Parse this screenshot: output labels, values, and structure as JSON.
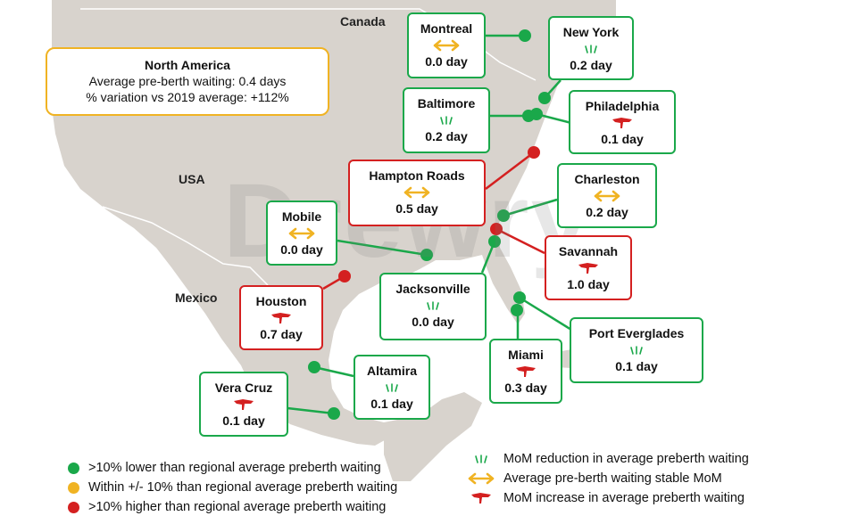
{
  "summary": {
    "title": "North America",
    "line1": "Average pre-berth waiting: 0.4 days",
    "line2": "% variation vs 2019 average: +112%"
  },
  "countries": {
    "canada": "Canada",
    "usa": "USA",
    "mexico": "Mexico"
  },
  "watermark": "Drewry",
  "colors": {
    "green": "#1aa84a",
    "amber": "#f0b323",
    "red": "#d42020",
    "land": "#d8d3cd",
    "sea": "#ffffff"
  },
  "ports": {
    "montreal": {
      "name": "Montreal",
      "value": "0.0 day",
      "status": "green",
      "trend": "stable-arrows-icon"
    },
    "new_york": {
      "name": "New York",
      "value": "0.2 day",
      "status": "green",
      "trend": "reduction-icon"
    },
    "baltimore": {
      "name": "Baltimore",
      "value": "0.2 day",
      "status": "green",
      "trend": "reduction-icon"
    },
    "philadelphia": {
      "name": "Philadelphia",
      "value": "0.1 day",
      "status": "green",
      "trend": "increase-icon"
    },
    "hampton_roads": {
      "name": "Hampton Roads",
      "value": "0.5 day",
      "status": "red",
      "trend": "stable-arrows-icon"
    },
    "charleston": {
      "name": "Charleston",
      "value": "0.2 day",
      "status": "green",
      "trend": "stable-arrows-icon"
    },
    "mobile": {
      "name": "Mobile",
      "value": "0.0 day",
      "status": "green",
      "trend": "stable-arrows-icon"
    },
    "savannah": {
      "name": "Savannah",
      "value": "1.0 day",
      "status": "red",
      "trend": "increase-icon"
    },
    "jacksonville": {
      "name": "Jacksonville",
      "value": "0.0 day",
      "status": "green",
      "trend": "reduction-icon"
    },
    "houston": {
      "name": "Houston",
      "value": "0.7 day",
      "status": "red",
      "trend": "increase-icon"
    },
    "port_everglades": {
      "name": "Port Everglades",
      "value": "0.1 day",
      "status": "green",
      "trend": "reduction-icon"
    },
    "miami": {
      "name": "Miami",
      "value": "0.3 day",
      "status": "green",
      "trend": "increase-icon"
    },
    "altamira": {
      "name": "Altamira",
      "value": "0.1 day",
      "status": "green",
      "trend": "reduction-icon"
    },
    "vera_cruz": {
      "name": "Vera Cruz",
      "value": "0.1 day",
      "status": "green",
      "trend": "increase-icon"
    }
  },
  "legend": {
    "dots": [
      {
        "color": "green",
        "label": ">10% lower than regional average preberth waiting"
      },
      {
        "color": "amber",
        "label": "Within +/- 10% than regional average preberth waiting"
      },
      {
        "color": "red",
        "label": ">10% higher than regional average preberth waiting"
      }
    ],
    "icons": [
      {
        "icon": "reduction-icon",
        "label": "MoM reduction in average preberth waiting"
      },
      {
        "icon": "stable-arrows-icon",
        "label": "Average pre-berth waiting stable MoM"
      },
      {
        "icon": "increase-icon",
        "label": "MoM increase in average preberth waiting"
      }
    ]
  }
}
